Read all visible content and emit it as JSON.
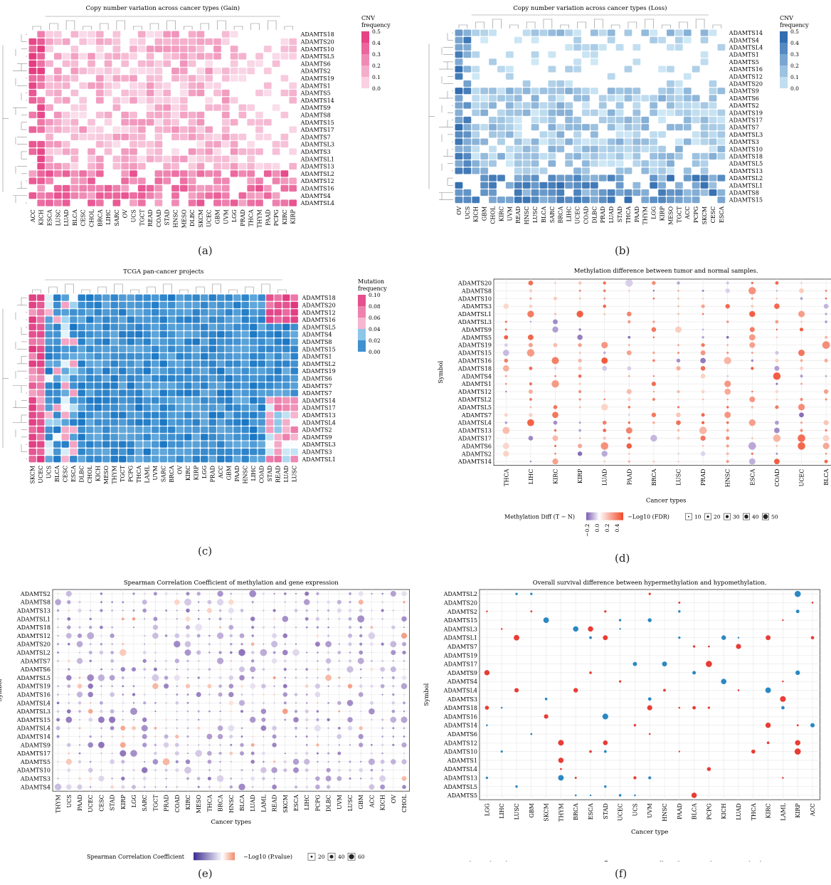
{
  "panels": {
    "a": {
      "caption": "(a)",
      "title": "Copy number variation across cancer types (Gain)",
      "legend_title": [
        "CNV",
        "frequency"
      ],
      "legend_ticks": [
        "0.5",
        "0.4",
        "0.3",
        "0.2",
        "0.1",
        "0.0"
      ],
      "rows": [
        "ADAMTS18",
        "ADAMTS20",
        "ADAMTS10",
        "ADAMTSL5",
        "ADAMTS6",
        "ADAMTS2",
        "ADAMTS19",
        "ADAMTS1",
        "ADAMTS5",
        "ADAMTS14",
        "ADAMTS9",
        "ADAMTS8",
        "ADAMTS15",
        "ADAMTS17",
        "ADAMTS7",
        "ADAMTSL3",
        "ADAMTS3",
        "ADAMTSL1",
        "ADAMTS13",
        "ADAMTSL2",
        "ADAMTS12",
        "ADAMTS16",
        "ADAMTS4",
        "ADAMTSL4"
      ],
      "cols": [
        "ACC",
        "KICH",
        "ESCA",
        "LUSC",
        "LUAD",
        "BLCA",
        "CESC",
        "CHOL",
        "BRCA",
        "LIHC",
        "SARC",
        "OV",
        "UCS",
        "TGCT",
        "READ",
        "COAD",
        "STAD",
        "HNSC",
        "MESO",
        "DLBC",
        "SKCM",
        "UCEC",
        "GBM",
        "UVM",
        "LGG",
        "PRAD",
        "THCA",
        "THYM",
        "PAAD",
        "PCPG",
        "KIRC",
        "KIRP"
      ]
    },
    "b": {
      "caption": "(b)",
      "title": "Copy number variation across cancer types (Loss)",
      "legend_title": [
        "CNV",
        "frequency"
      ],
      "legend_ticks": [
        "0.5",
        "0.4",
        "0.3",
        "0.2",
        "0.1",
        "0.0"
      ],
      "rows": [
        "ADAMTS14",
        "ADAMTS4",
        "ADAMTSL4",
        "ADAMTS1",
        "ADAMTS5",
        "ADAMTS16",
        "ADAMTS12",
        "ADAMTS20",
        "ADAMTS9",
        "ADAMTS6",
        "ADAMTS2",
        "ADAMTS19",
        "ADAMTS17",
        "ADAMTS7",
        "ADAMTSL3",
        "ADAMTS3",
        "ADAMTS10",
        "ADAMTS18",
        "ADAMTSL5",
        "ADAMTS13",
        "ADAMTSL2",
        "ADAMTSL1",
        "ADAMTS8",
        "ADAMTS15"
      ],
      "cols": [
        "OV",
        "UCS",
        "KICH",
        "GBM",
        "CHOL",
        "KIRC",
        "UVM",
        "READ",
        "HNSC",
        "LUSC",
        "BLCA",
        "SARC",
        "BRCA",
        "LIHC",
        "UCEC",
        "COAD",
        "DLBC",
        "PRAD",
        "LUAD",
        "STAD",
        "THCA",
        "PAAD",
        "THYM",
        "LGG",
        "KIRP",
        "MESO",
        "TGCT",
        "ACC",
        "PCPG",
        "SKCM",
        "CESC",
        "ESCA"
      ]
    },
    "c": {
      "caption": "(c)",
      "title": "TCGA pan-cancer projects",
      "legend_title": [
        "Mutation",
        "frequency"
      ],
      "legend_ticks": [
        "0.10",
        "0.08",
        "0.06",
        "0.04",
        "0.02",
        "0.00"
      ],
      "rows": [
        "ADAMTS18",
        "ADAMTS20",
        "ADAMTS12",
        "ADAMTS16",
        "ADAMTSL5",
        "ADAMTS4",
        "ADAMTS8",
        "ADAMTS15",
        "ADAMTS1",
        "ADAMTSL2",
        "ADAMTS19",
        "ADAMTS6",
        "ADAMTS7",
        "ADAMTS7",
        "ADAMTS14",
        "ADAMTS17",
        "ADAMTS13",
        "ADAMTSL4",
        "ADAMTS2",
        "ADAMTS9",
        "ADAMTSL3",
        "ADAMTS3",
        "ADAMTSL1"
      ],
      "cols": [
        "SKCM",
        "UCEC",
        "UCS",
        "BLCA",
        "CESC",
        "ESCA",
        "DLBC",
        "CHOL",
        "KICH",
        "MESO",
        "THYM",
        "TGCT",
        "PCPG",
        "THCA",
        "LAML",
        "UVM",
        "SARC",
        "BRCA",
        "OV",
        "KIRC",
        "KIRP",
        "LGG",
        "PRAD",
        "ACC",
        "GBM",
        "PAAD",
        "HNSC",
        "LIHC",
        "COAD",
        "STAD",
        "READ",
        "LUAD",
        "LUSC"
      ]
    },
    "d": {
      "caption": "(d)",
      "title": "Methylation difference between tumor and normal samples.",
      "ylabel": "Symbol",
      "xlabel": "Cancer types",
      "rows": [
        "ADAMTS20",
        "ADAMTS8",
        "ADAMTS10",
        "ADAMTS3",
        "ADAMTSL1",
        "ADAMTSL3",
        "ADAMTS9",
        "ADAMTS5",
        "ADAMTS19",
        "ADAMTS15",
        "ADAMTS16",
        "ADAMTS18",
        "ADAMTS4",
        "ADAMTS1",
        "ADAMTS12",
        "ADAMTSL2",
        "ADAMTSL5",
        "ADAMTS7",
        "ADAMTSL4",
        "ADAMTS13",
        "ADAMTS17",
        "ADAMTS6",
        "ADAMTS2",
        "ADAMTS14"
      ],
      "cols": [
        "THCA",
        "LIHC",
        "KIRC",
        "KIRP",
        "LUAD",
        "PAAD",
        "BRCA",
        "LUSC",
        "PRAD",
        "HNSC",
        "ESCA",
        "COAD",
        "UCEC",
        "BLCA"
      ],
      "color_legend_title": "Methylation Diff (T − N)",
      "color_ticks": [
        "−0.2",
        "0.0",
        "0.2",
        "0.4"
      ],
      "size_legend_title": "−Log10 (FDR)",
      "size_ticks": [
        "10",
        "20",
        "30",
        "40",
        "50"
      ]
    },
    "e": {
      "caption": "(e)",
      "title": "Spearman Correlation Coefficient of methylation and gene expression",
      "ylabel": "Symbol",
      "xlabel": "Cancer types",
      "rows": [
        "ADAMTS2",
        "ADAMTS8",
        "ADAMTS13",
        "ADAMTSL1",
        "ADAMTS18",
        "ADAMTS12",
        "ADAMTS20",
        "ADAMTSL2",
        "ADAMTS7",
        "ADAMTS6",
        "ADAMTSL5",
        "ADAMTS19",
        "ADAMTS16",
        "ADAMTSL4",
        "ADAMTSL3",
        "ADAMTS15",
        "ADAMTSL4",
        "ADAMTS14",
        "ADAMTS9",
        "ADAMTS17",
        "ADAMTS5",
        "ADAMTS10",
        "ADAMTS3",
        "ADAMTS4"
      ],
      "cols": [
        "THYM",
        "UCS",
        "PAAD",
        "UCEC",
        "CESC",
        "STAD",
        "KIRP",
        "LGG",
        "SARC",
        "TGCT",
        "PRAD",
        "COAD",
        "KIRC",
        "MESO",
        "THCA",
        "BRCA",
        "HNSC",
        "BLCA",
        "LUAD",
        "LAML",
        "READ",
        "SKCM",
        "ESCA",
        "LIHC",
        "PCPG",
        "DLBC",
        "UVM",
        "LUSC",
        "GBM",
        "ACC",
        "KICH",
        "OV",
        "CHOL"
      ],
      "color_legend_title": "Spearman Correlation Coefficient",
      "color_ticks": [
        "−0.6",
        "−0.3",
        "0.0",
        "0.3"
      ],
      "size_legend_title": "−Log10 (P.value)",
      "size_ticks": [
        "20",
        "40",
        "60"
      ]
    },
    "f": {
      "caption": "(f)",
      "title": "Overall survival difference between hypermethylation and hypomethylation.",
      "ylabel": "Symbol",
      "xlabel": "Cancer type",
      "rows": [
        "ADAMTSL2",
        "ADAMTS20",
        "ADAMTS2",
        "ADAMTS15",
        "ADAMTSL3",
        "ADAMTSL1",
        "ADAMTS7",
        "ADAMTS19",
        "ADAMTS17",
        "ADAMTS9",
        "ADAMTS4",
        "ADAMTSL4",
        "ADAMTS3",
        "ADAMTS18",
        "ADAMTS16",
        "ADAMTS14",
        "ADAMTS6",
        "ADAMTS12",
        "ADAMTS10",
        "ADAMTS1",
        "ADAMTSL4",
        "ADAMTS13",
        "ADAMTSL5",
        "ADAMTS5"
      ],
      "cols": [
        "LGG",
        "LIHC",
        "LUSC",
        "GBM",
        "SKCM",
        "THYM",
        "BRCA",
        "ESCA",
        "STAD",
        "UCEC",
        "UCS",
        "UVM",
        "HNSC",
        "PAAD",
        "BLCA",
        "PCPG",
        "KICH",
        "LUAD",
        "THCA",
        "KIRC",
        "LAML",
        "KIRP",
        "ACC"
      ],
      "size_legend_title": "logRank Pvalue",
      "size_ticks": [
        "0.05",
        "10⁻⁵",
        "10⁻¹⁰",
        "<10⁻¹⁵"
      ],
      "color_legend_title": "Effect of HyperMothy on survival risk",
      "color_ticks": [
        "High",
        "Low"
      ]
    }
  },
  "colors": {
    "gain_high": "#e4307a",
    "loss_high": "#1f5fa8",
    "mut_low": "#1a76c4",
    "mut_high": "#e0357e",
    "meth_pos": "#f04a2a",
    "meth_neg": "#7b5cb0",
    "surv_high": "#e8332a",
    "surv_low": "#1f82c0"
  },
  "chart_data": [
    {
      "type": "heatmap",
      "panel": "a",
      "title": "Copy number variation across cancer types (Gain)",
      "color_range": [
        0,
        0.5
      ]
    },
    {
      "type": "heatmap",
      "panel": "b",
      "title": "Copy number variation across cancer types (Loss)",
      "color_range": [
        0,
        0.5
      ]
    },
    {
      "type": "heatmap",
      "panel": "c",
      "title": "TCGA pan-cancer projects",
      "color_range": [
        0,
        0.1
      ]
    },
    {
      "type": "scatter",
      "panel": "d",
      "title": "Methylation difference between tumor and normal samples.",
      "xlabel": "Cancer types",
      "ylabel": "Symbol"
    },
    {
      "type": "scatter",
      "panel": "e",
      "title": "Spearman Correlation Coefficient of methylation and gene expression",
      "xlabel": "Cancer types",
      "ylabel": "Symbol"
    },
    {
      "type": "scatter",
      "panel": "f",
      "title": "Overall survival difference between hypermethylation and hypomethylation.",
      "xlabel": "Cancer type",
      "ylabel": "Symbol"
    }
  ]
}
